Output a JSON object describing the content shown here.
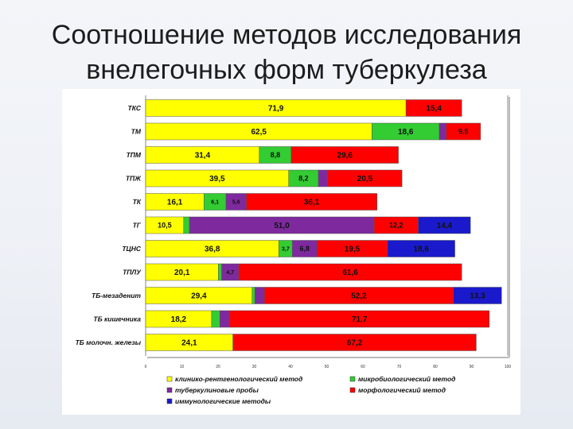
{
  "title": {
    "line1": "Соотношение методов исследования",
    "line2": "внелегочных форм туберкулеза"
  },
  "chart_data": {
    "type": "bar",
    "stacked": true,
    "orientation": "horizontal",
    "categories": [
      "ТКС",
      "ТМ",
      "ТПМ",
      "ТПЖ",
      "ТК",
      "ТГ",
      "ТЦНС",
      "ТПЛУ",
      "ТБ-мезаденит",
      "ТБ кишечника",
      "ТБ молочн. железы"
    ],
    "series": [
      {
        "name": "клинико-рентгенологический метод",
        "color": "#ffff00",
        "values": [
          71.9,
          62.5,
          31.4,
          39.5,
          16.1,
          10.5,
          36.8,
          20.1,
          29.4,
          18.2,
          24.1
        ],
        "labels": [
          "71,9",
          "62,5",
          "31,4",
          "39,5",
          "16,1",
          "10,5",
          "36,8",
          "20,1",
          "29,4",
          "18,2",
          "24,1"
        ]
      },
      {
        "name": "микробиологический метод",
        "color": "#33cc33",
        "values": [
          0,
          18.6,
          8.8,
          8.2,
          6.1,
          1.6,
          3.7,
          0.9,
          0.8,
          2.3,
          0
        ],
        "labels": [
          "",
          "18,6",
          "8,8",
          "8,2",
          "6,1",
          "",
          "3,7",
          "",
          "",
          "",
          ""
        ]
      },
      {
        "name": "туберкулиновые пробы",
        "color": "#7e2a9e",
        "values": [
          0,
          1.9,
          0,
          2.6,
          5.6,
          51.0,
          6.8,
          4.7,
          2.6,
          2.7,
          0
        ],
        "labels": [
          "",
          "",
          "",
          "",
          "5,6",
          "51,0",
          "6,8",
          "4,7",
          "",
          "",
          ""
        ]
      },
      {
        "name": "морфологический метод",
        "color": "#ff0000",
        "values": [
          15.4,
          9.5,
          29.6,
          20.5,
          36.1,
          12.2,
          19.5,
          61.6,
          52.2,
          71.7,
          67.2
        ],
        "labels": [
          "15,4",
          "9,5",
          "29,6",
          "20,5",
          "36,1",
          "12,2",
          "19,5",
          "61,6",
          "52,2",
          "71,7",
          "67,2"
        ]
      },
      {
        "name": "иммунологические методы",
        "color": "#1a1acc",
        "values": [
          0,
          0,
          0,
          0,
          0,
          14.4,
          18.6,
          0,
          13.3,
          0,
          0
        ],
        "labels": [
          "",
          "",
          "",
          "",
          "",
          "14,4",
          "18,6",
          "",
          "13,3",
          "",
          ""
        ]
      }
    ],
    "xlim": [
      0,
      100
    ],
    "grid": false,
    "legend_position": "bottom"
  }
}
